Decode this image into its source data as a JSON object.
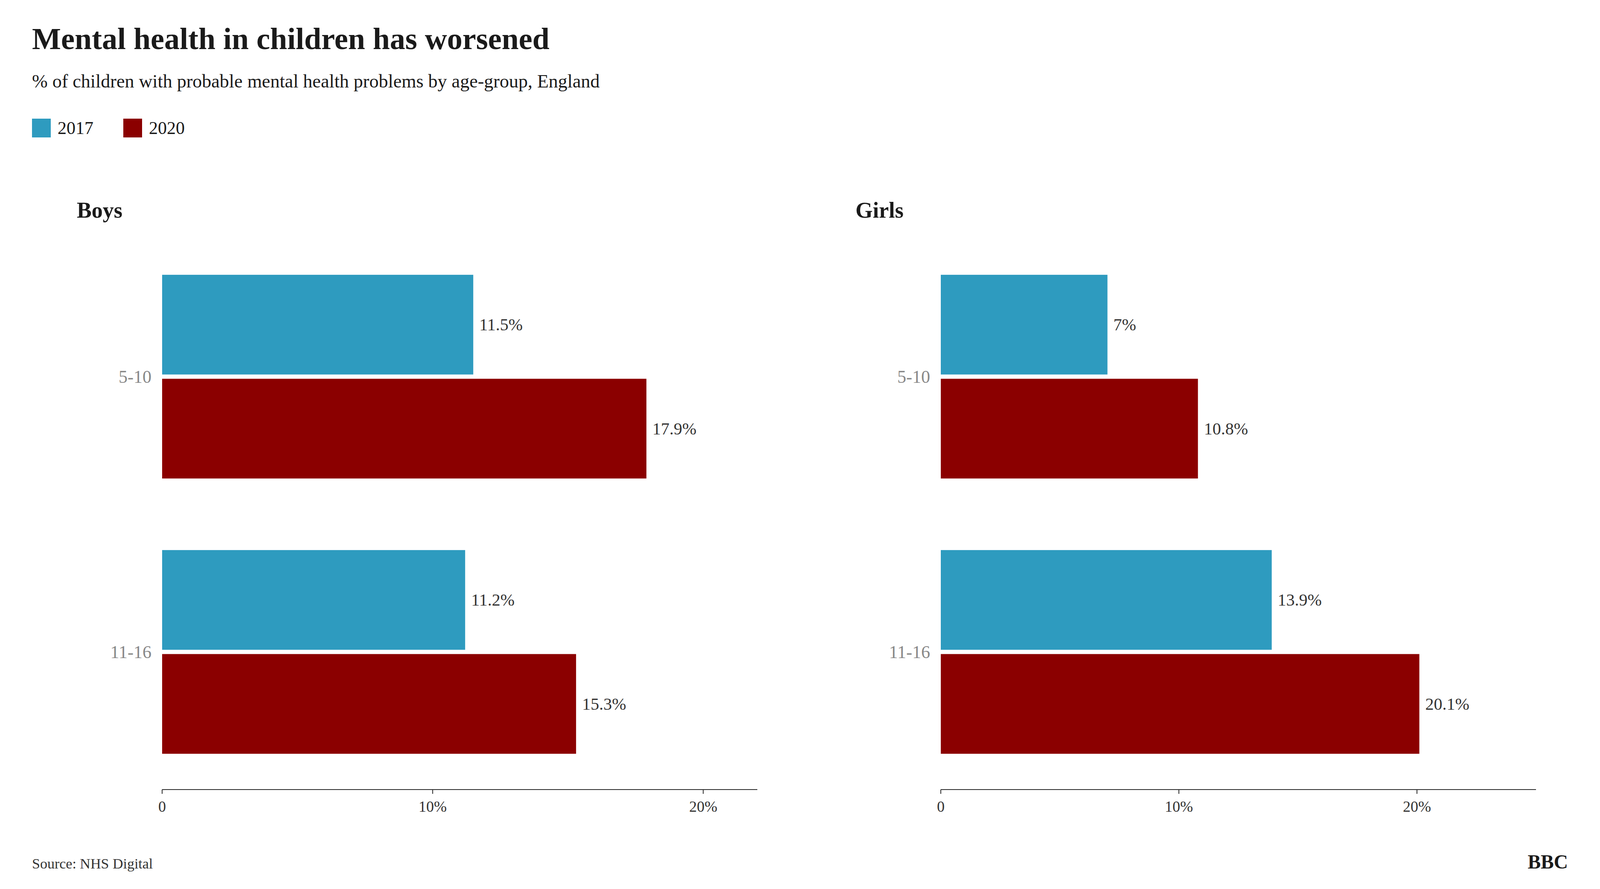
{
  "title": "Mental health in children has worsened",
  "subtitle": "% of children with probable mental health problems by age-group, England",
  "annotations": [
    "Source: NHS Digital",
    "BBC"
  ],
  "chart_data": [
    {
      "type": "bar",
      "orientation": "horizontal",
      "title": "Boys",
      "categories": [
        "5-10",
        "11-16"
      ],
      "series": [
        {
          "name": "2017",
          "color": "#2e9bbf",
          "values": [
            11.5,
            11.2
          ],
          "value_labels": [
            "11.5%",
            "11.2%"
          ]
        },
        {
          "name": "2020",
          "color": "#8b0000",
          "values": [
            17.9,
            15.3
          ],
          "value_labels": [
            "17.9%",
            "15.3%"
          ]
        }
      ],
      "xlim": [
        0,
        22
      ],
      "xticks": [
        0,
        {
          "value": 10,
          "label": "10%"
        },
        {
          "value": 20,
          "label": "20%"
        }
      ],
      "grid": false,
      "data_labels": true,
      "legend": "upper left"
    },
    {
      "type": "bar",
      "orientation": "horizontal",
      "title": "Girls",
      "categories": [
        "5-10",
        "11-16"
      ],
      "series": [
        {
          "name": "2017",
          "color": "#2e9bbf",
          "values": [
            7.0,
            13.9
          ],
          "value_labels": [
            "7%",
            "13.9%"
          ]
        },
        {
          "name": "2020",
          "color": "#8b0000",
          "values": [
            10.8,
            20.1
          ],
          "value_labels": [
            "10.8%",
            "20.1%"
          ]
        }
      ],
      "xlim": [
        0,
        25
      ],
      "xticks": [
        0,
        {
          "value": 10,
          "label": "10%"
        },
        {
          "value": 20,
          "label": "20%"
        }
      ],
      "grid": false,
      "data_labels": true
    }
  ]
}
